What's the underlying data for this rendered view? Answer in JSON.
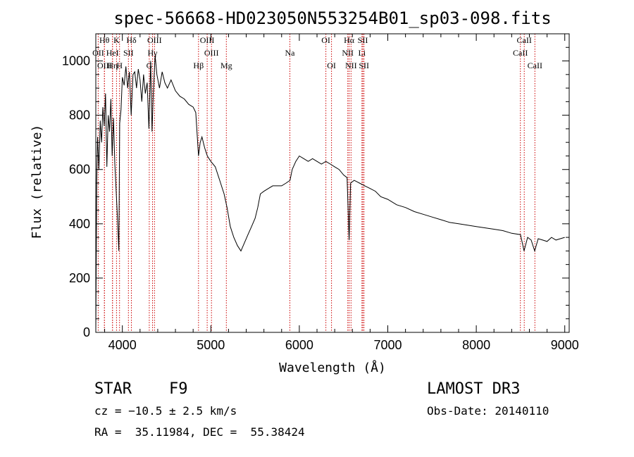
{
  "chart_data": {
    "type": "line",
    "title": "spec-56668-HD023050N553254B01_sp03-098.fits",
    "xlabel": "Wavelength (Å)",
    "ylabel": "Flux (relative)",
    "xlim": [
      3700,
      9050
    ],
    "ylim": [
      0,
      1100
    ],
    "xticks": [
      4000,
      5000,
      6000,
      7000,
      8000,
      9000
    ],
    "yticks": [
      0,
      200,
      400,
      600,
      800,
      1000
    ],
    "grid": false,
    "legend": "none",
    "series": [
      {
        "color": "#000000",
        "points": [
          [
            3700,
            0
          ],
          [
            3710,
            560
          ],
          [
            3720,
            720
          ],
          [
            3735,
            600
          ],
          [
            3750,
            780
          ],
          [
            3765,
            700
          ],
          [
            3780,
            830
          ],
          [
            3795,
            760
          ],
          [
            3810,
            880
          ],
          [
            3825,
            610
          ],
          [
            3840,
            800
          ],
          [
            3855,
            740
          ],
          [
            3870,
            860
          ],
          [
            3885,
            650
          ],
          [
            3900,
            790
          ],
          [
            3915,
            620
          ],
          [
            3930,
            520
          ],
          [
            3945,
            420
          ],
          [
            3960,
            300
          ],
          [
            3970,
            770
          ],
          [
            3985,
            820
          ],
          [
            4000,
            940
          ],
          [
            4020,
            910
          ],
          [
            4040,
            980
          ],
          [
            4060,
            900
          ],
          [
            4080,
            960
          ],
          [
            4100,
            800
          ],
          [
            4120,
            950
          ],
          [
            4140,
            960
          ],
          [
            4160,
            900
          ],
          [
            4180,
            970
          ],
          [
            4200,
            930
          ],
          [
            4220,
            850
          ],
          [
            4240,
            950
          ],
          [
            4260,
            880
          ],
          [
            4280,
            920
          ],
          [
            4300,
            750
          ],
          [
            4320,
            1000
          ],
          [
            4335,
            740
          ],
          [
            4350,
            880
          ],
          [
            4370,
            1020
          ],
          [
            4390,
            950
          ],
          [
            4420,
            900
          ],
          [
            4450,
            960
          ],
          [
            4480,
            920
          ],
          [
            4510,
            900
          ],
          [
            4550,
            930
          ],
          [
            4600,
            890
          ],
          [
            4650,
            870
          ],
          [
            4700,
            860
          ],
          [
            4750,
            840
          ],
          [
            4800,
            830
          ],
          [
            4830,
            810
          ],
          [
            4861,
            650
          ],
          [
            4880,
            700
          ],
          [
            4900,
            720
          ],
          [
            4930,
            680
          ],
          [
            4960,
            650
          ],
          [
            5000,
            630
          ],
          [
            5050,
            610
          ],
          [
            5100,
            560
          ],
          [
            5150,
            510
          ],
          [
            5183,
            460
          ],
          [
            5220,
            390
          ],
          [
            5260,
            350
          ],
          [
            5300,
            320
          ],
          [
            5340,
            300
          ],
          [
            5380,
            330
          ],
          [
            5420,
            360
          ],
          [
            5460,
            390
          ],
          [
            5500,
            420
          ],
          [
            5530,
            460
          ],
          [
            5560,
            510
          ],
          [
            5600,
            520
          ],
          [
            5650,
            530
          ],
          [
            5700,
            540
          ],
          [
            5750,
            540
          ],
          [
            5800,
            540
          ],
          [
            5850,
            550
          ],
          [
            5895,
            560
          ],
          [
            5920,
            600
          ],
          [
            5960,
            630
          ],
          [
            6000,
            650
          ],
          [
            6050,
            640
          ],
          [
            6100,
            630
          ],
          [
            6150,
            640
          ],
          [
            6200,
            630
          ],
          [
            6250,
            620
          ],
          [
            6300,
            630
          ],
          [
            6350,
            620
          ],
          [
            6400,
            610
          ],
          [
            6450,
            600
          ],
          [
            6500,
            580
          ],
          [
            6540,
            570
          ],
          [
            6563,
            340
          ],
          [
            6580,
            550
          ],
          [
            6620,
            560
          ],
          [
            6680,
            550
          ],
          [
            6740,
            540
          ],
          [
            6800,
            530
          ],
          [
            6860,
            520
          ],
          [
            6920,
            500
          ],
          [
            7000,
            490
          ],
          [
            7100,
            470
          ],
          [
            7200,
            460
          ],
          [
            7300,
            445
          ],
          [
            7400,
            435
          ],
          [
            7500,
            425
          ],
          [
            7600,
            415
          ],
          [
            7700,
            405
          ],
          [
            7800,
            400
          ],
          [
            7900,
            395
          ],
          [
            8000,
            390
          ],
          [
            8100,
            385
          ],
          [
            8200,
            380
          ],
          [
            8300,
            375
          ],
          [
            8400,
            365
          ],
          [
            8500,
            360
          ],
          [
            8540,
            300
          ],
          [
            8580,
            350
          ],
          [
            8620,
            340
          ],
          [
            8660,
            300
          ],
          [
            8700,
            345
          ],
          [
            8750,
            340
          ],
          [
            8800,
            335
          ],
          [
            8850,
            350
          ],
          [
            8900,
            340
          ],
          [
            8950,
            345
          ],
          [
            9000,
            350
          ]
        ]
      }
    ],
    "lines": [
      {
        "labels": [
          "OII"
        ],
        "row": 1,
        "wl": 3727
      },
      {
        "labels": [
          "Hθ"
        ],
        "row": 0,
        "wl": 3797
      },
      {
        "labels": [
          "OIII"
        ],
        "row": 2,
        "wl": 3798
      },
      {
        "labels": [
          "HeI"
        ],
        "row": 1,
        "wl": 3889
      },
      {
        "labels": [
          "Hη"
        ],
        "row": 2,
        "wl": 3889
      },
      {
        "labels": [
          "K"
        ],
        "row": 0,
        "wl": 3934
      },
      {
        "labels": [
          "SII"
        ],
        "row": 1,
        "wl": 4069
      },
      {
        "labels": [
          "H"
        ],
        "row": 2,
        "wl": 3968
      },
      {
        "labels": [
          "Hδ"
        ],
        "row": 0,
        "wl": 4102
      },
      {
        "labels": [
          "G"
        ],
        "row": 2,
        "wl": 4304
      },
      {
        "labels": [
          "OIII"
        ],
        "row": 0,
        "wl": 4363
      },
      {
        "labels": [
          "Hγ"
        ],
        "row": 1,
        "wl": 4341
      },
      {
        "labels": [
          "Hβ"
        ],
        "row": 2,
        "wl": 4861
      },
      {
        "labels": [
          "OIII"
        ],
        "row": 0,
        "wl": 4959
      },
      {
        "labels": [
          "OIII"
        ],
        "row": 1,
        "wl": 5007
      },
      {
        "labels": [
          "Mg"
        ],
        "row": 2,
        "wl": 5175
      },
      {
        "labels": [
          "Na"
        ],
        "row": 1,
        "wl": 5893
      },
      {
        "labels": [
          "OI"
        ],
        "row": 0,
        "wl": 6300
      },
      {
        "labels": [
          "OI"
        ],
        "row": 2,
        "wl": 6364
      },
      {
        "labels": [
          "Hα"
        ],
        "row": 0,
        "wl": 6563
      },
      {
        "labels": [
          "NII"
        ],
        "row": 1,
        "wl": 6548
      },
      {
        "labels": [
          "NII"
        ],
        "row": 2,
        "wl": 6584
      },
      {
        "labels": [
          "SII"
        ],
        "row": 0,
        "wl": 6717
      },
      {
        "labels": [
          "Li"
        ],
        "row": 1,
        "wl": 6708
      },
      {
        "labels": [
          "SII"
        ],
        "row": 2,
        "wl": 6731
      },
      {
        "labels": [
          "CaII"
        ],
        "row": 0,
        "wl": 8542
      },
      {
        "labels": [
          "CaII"
        ],
        "row": 1,
        "wl": 8498
      },
      {
        "labels": [
          "CaII"
        ],
        "row": 2,
        "wl": 8662
      }
    ]
  },
  "info": {
    "class": "STAR",
    "subclass": "F9",
    "survey": "LAMOST DR3",
    "cz": "cz = −10.5 ± 2.5 km/s",
    "obs_date": "Obs-Date: 20140110",
    "coords": "RA =  35.11984, DEC =  55.38424"
  },
  "colors": {
    "spectrum": "#000000",
    "line_marker": "#cc0000",
    "axis": "#000000"
  }
}
